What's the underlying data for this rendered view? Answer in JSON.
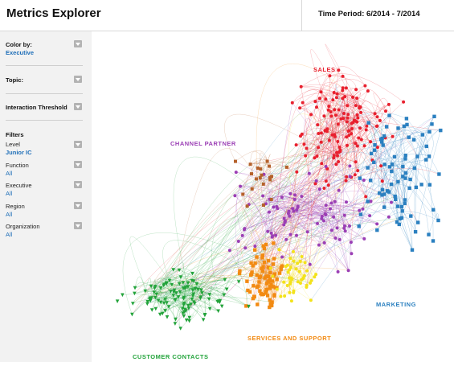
{
  "header": {
    "title": "Metrics Explorer",
    "time_period": "Time Period: 6/2014 - 7/2014"
  },
  "sidebar": {
    "color_by": {
      "label": "Color by:",
      "value": "Executive"
    },
    "topic": {
      "label": "Topic:"
    },
    "interaction_threshold": {
      "label": "Interaction Threshold"
    },
    "filters": {
      "heading": "Filters",
      "items": [
        {
          "label": "Level",
          "value": "Junior IC"
        },
        {
          "label": "Function",
          "value": "All"
        },
        {
          "label": "Executive",
          "value": "All"
        },
        {
          "label": "Region",
          "value": "All"
        },
        {
          "label": "Organization",
          "value": "All"
        }
      ]
    }
  },
  "graph": {
    "clusters": [
      {
        "name": "SALES",
        "color": "#e8202e"
      },
      {
        "name": "CHANNEL PARTNER",
        "color": "#9b3fb5"
      },
      {
        "name": "MARKETING",
        "color": "#2b80c0"
      },
      {
        "name": "SERVICES AND SUPPORT",
        "color": "#f28a12"
      },
      {
        "name": "CUSTOMER CONTACTS",
        "color": "#22a33a"
      }
    ],
    "extra_colors": {
      "yellow": "#f3e21a",
      "brown": "#b5612b"
    }
  }
}
